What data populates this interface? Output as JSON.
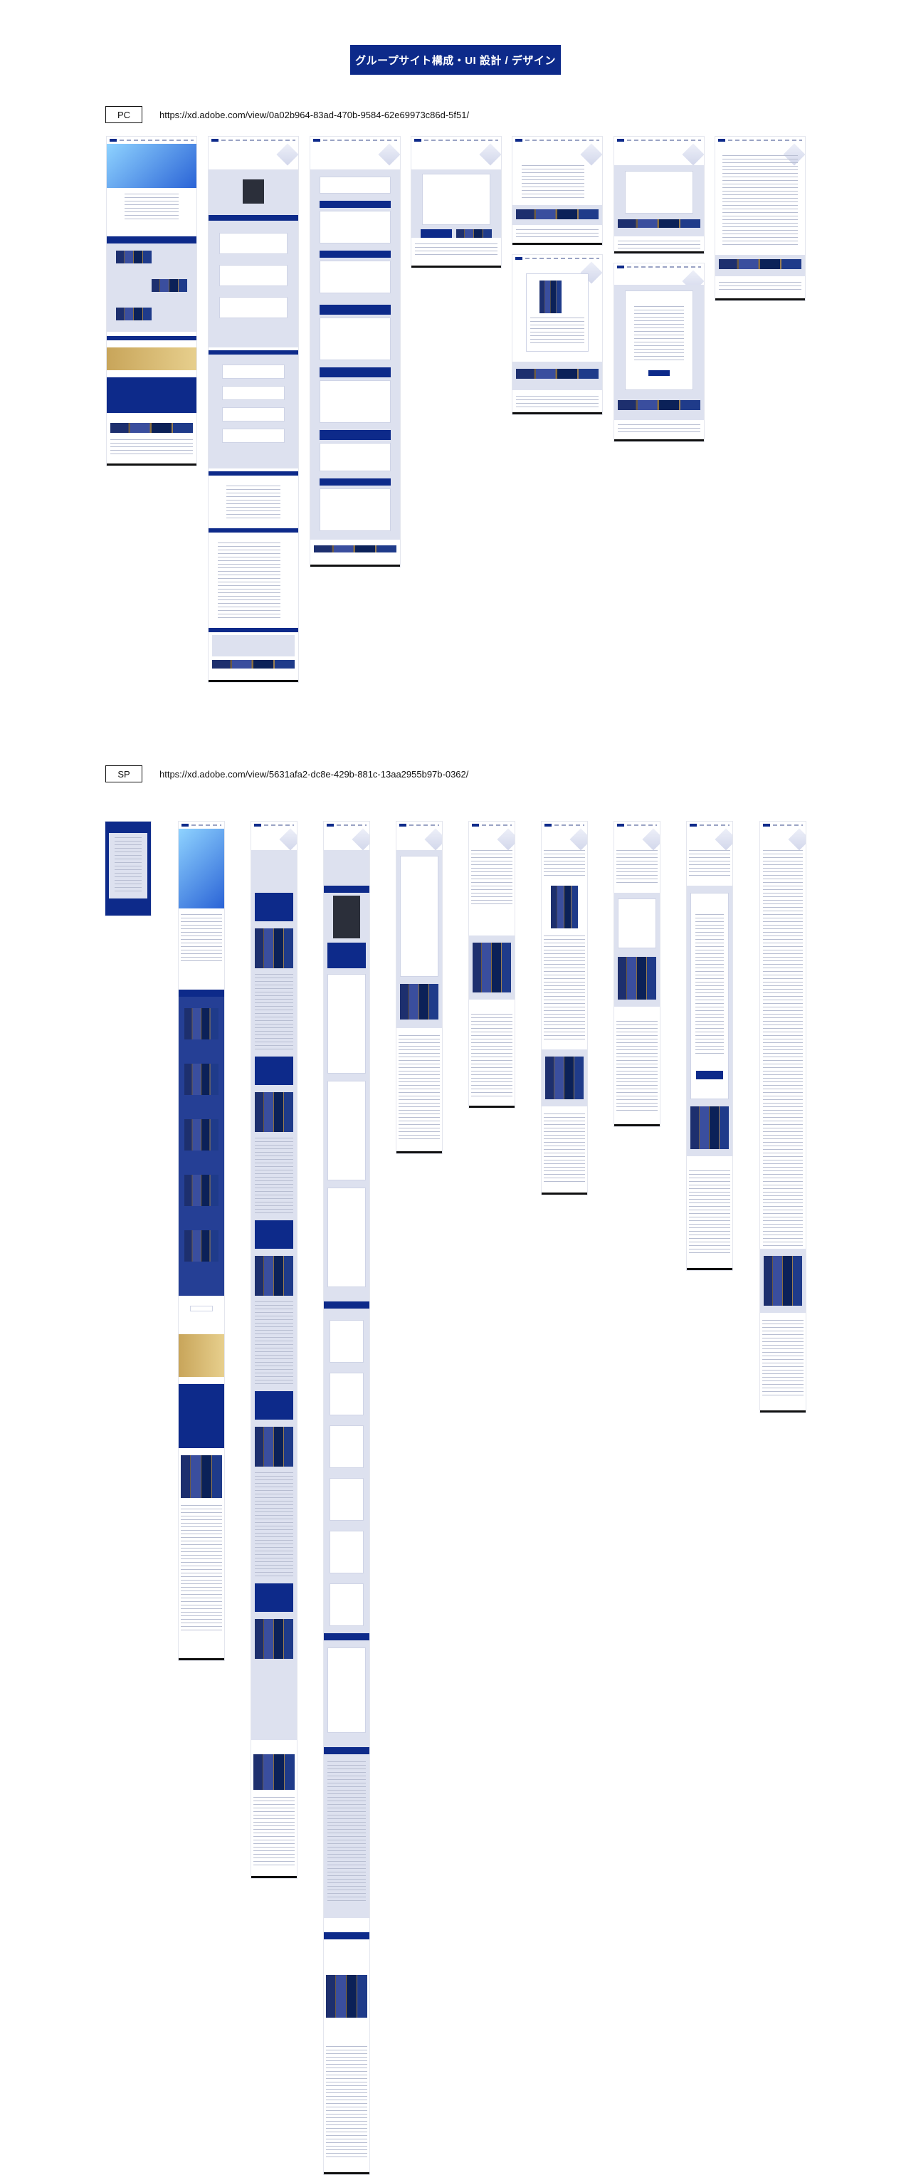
{
  "page_title": "グループサイト構成・UI 設計 / デザイン",
  "pc_section": {
    "label": "PC",
    "url": "https://xd.adobe.com/view/0a02b964-83ad-470b-9584-62e69973c86d-5f51/"
  },
  "sp_section": {
    "label": "SP",
    "url": "https://xd.adobe.com/view/5631afa2-dc8e-429b-881c-13aa2955b97b-0362/"
  },
  "colors": {
    "accent_navy": "#0d2a8a",
    "lavender": "#dde1ef",
    "gold": "#c8a55a"
  }
}
